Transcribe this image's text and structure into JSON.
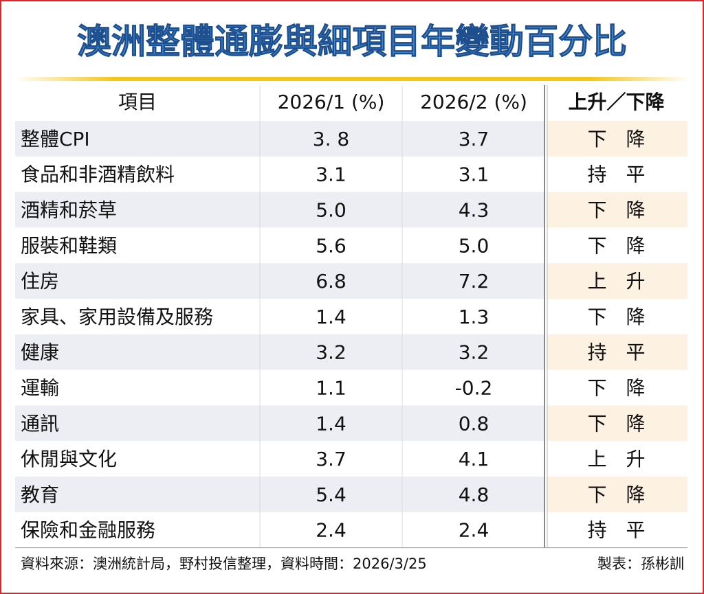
{
  "header": {
    "title": "澳洲整體通膨與細項目年變動百分比"
  },
  "table": {
    "columns": [
      "項目",
      "2026/1 (%)",
      "2026/2 (%)",
      "上升／下降"
    ],
    "rows": [
      [
        "整體CPI",
        "3. 8",
        "3.7",
        "下　降"
      ],
      [
        "食品和非酒精飲料",
        "3.1",
        "3.1",
        "持　平"
      ],
      [
        "酒精和菸草",
        "5.0",
        "4.3",
        "下　降"
      ],
      [
        "服裝和鞋類",
        "5.6",
        "5.0",
        "下　降"
      ],
      [
        "住房",
        "6.8",
        "7.2",
        "上　升"
      ],
      [
        "家具、家用設備及服務",
        "1.4",
        "1.3",
        "下　降"
      ],
      [
        "健康",
        "3.2",
        "3.2",
        "持　平"
      ],
      [
        "運輸",
        "1.1",
        "-0.2",
        "下　降"
      ],
      [
        "通訊",
        "1.4",
        "0.8",
        "下　降"
      ],
      [
        "休閒與文化",
        "3.7",
        "4.1",
        "上　升"
      ],
      [
        "教育",
        "5.4",
        "4.8",
        "下　降"
      ],
      [
        "保險和金融服務",
        "2.4",
        "2.4",
        "持　平"
      ]
    ]
  },
  "footer": {
    "source": "資料來源：澳洲統計局，野村投信整理，資料時間：2026/3/25",
    "author": "製表：孫彬訓"
  }
}
